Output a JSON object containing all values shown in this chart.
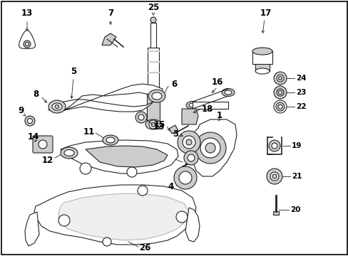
{
  "background_color": "#ffffff",
  "border_color": "#000000",
  "figsize": [
    4.89,
    3.6
  ],
  "dpi": 100,
  "line_color": "#222222",
  "gray": "#aaaaaa",
  "dark_gray": "#888888",
  "light_gray": "#cccccc",
  "fontsize_label": 7.5,
  "fontsize_num": 8.5
}
